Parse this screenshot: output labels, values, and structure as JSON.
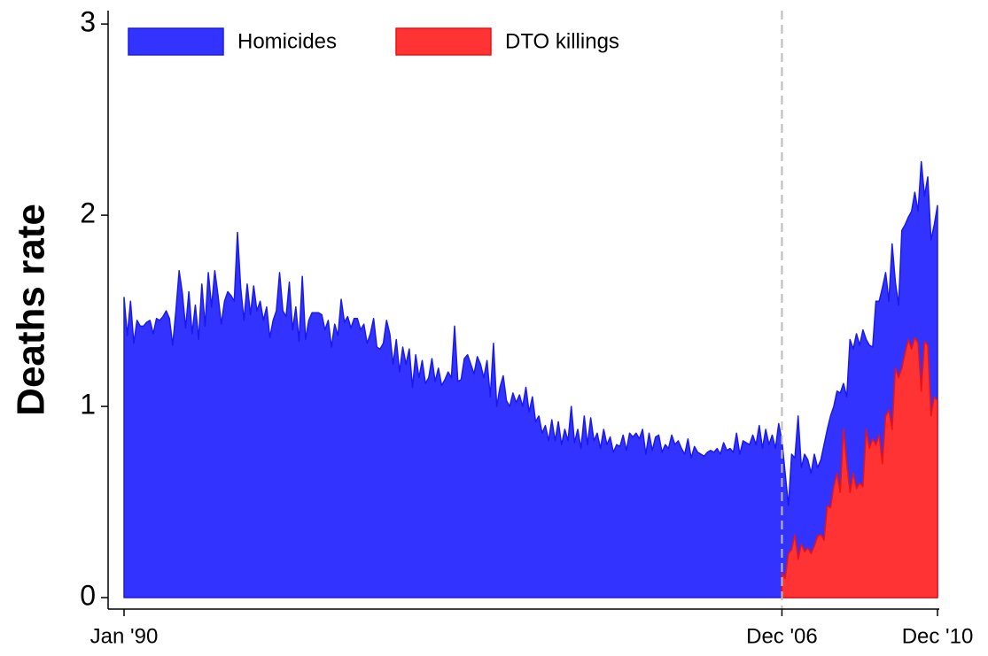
{
  "chart_data": {
    "type": "area",
    "y_label": "Deaths rate",
    "categories": [
      "Jan '90",
      null,
      null,
      null,
      null,
      null,
      null,
      null,
      null,
      null,
      null,
      null,
      null,
      null,
      null,
      null,
      null,
      null,
      null,
      null,
      null,
      null,
      null,
      null,
      null,
      null,
      null,
      null,
      null,
      null,
      null,
      null,
      null,
      null,
      null,
      null,
      null,
      null,
      null,
      null,
      null,
      null,
      null,
      null,
      null,
      null,
      null,
      null,
      null,
      null,
      null,
      null,
      null,
      null,
      null,
      null,
      null,
      null,
      null,
      null,
      null,
      null,
      null,
      null,
      null,
      null,
      null,
      null,
      null,
      null,
      null,
      null,
      null,
      null,
      null,
      null,
      null,
      null,
      null,
      null,
      null,
      null,
      null,
      null,
      null,
      null,
      null,
      null,
      null,
      null,
      null,
      null,
      null,
      null,
      null,
      null,
      null,
      null,
      null,
      null,
      null,
      null,
      null,
      null,
      null,
      null,
      null,
      null,
      null,
      null,
      null,
      null,
      null,
      null,
      null,
      null,
      null,
      null,
      null,
      null,
      null,
      null,
      null,
      null,
      null,
      null,
      null,
      null,
      null,
      null,
      null,
      null,
      null,
      null,
      null,
      null,
      null,
      null,
      null,
      null,
      null,
      null,
      null,
      null,
      null,
      null,
      null,
      null,
      null,
      null,
      null,
      null,
      null,
      null,
      null,
      null,
      null,
      null,
      null,
      null,
      null,
      null,
      null,
      null,
      null,
      null,
      null,
      null,
      null,
      null,
      null,
      null,
      null,
      null,
      null,
      null,
      null,
      null,
      null,
      null,
      null,
      null,
      null,
      null,
      null,
      null,
      null,
      null,
      null,
      null,
      null,
      null,
      null,
      null,
      null,
      null,
      null,
      null,
      null,
      null,
      null,
      null,
      null,
      "Dec '06",
      null,
      null,
      null,
      null,
      null,
      null,
      null,
      null,
      null,
      null,
      null,
      null,
      null,
      null,
      null,
      null,
      null,
      null,
      null,
      null,
      null,
      null,
      null,
      null,
      null,
      null,
      null,
      null,
      null,
      null,
      null,
      null,
      null,
      null,
      null,
      null,
      null,
      null,
      null,
      null,
      null,
      null,
      null,
      null,
      null,
      null,
      null,
      "Dec '10"
    ],
    "series": [
      {
        "name": "Homicides",
        "color": "#3333ff",
        "edge": "#1a1aee",
        "values": [
          1.57,
          1.37,
          1.55,
          1.33,
          1.45,
          1.42,
          1.42,
          1.44,
          1.45,
          1.38,
          1.46,
          1.45,
          1.47,
          1.5,
          1.46,
          1.32,
          1.5,
          1.71,
          1.59,
          1.41,
          1.6,
          1.38,
          1.53,
          1.35,
          1.64,
          1.42,
          1.7,
          1.52,
          1.71,
          1.58,
          1.43,
          1.55,
          1.6,
          1.58,
          1.55,
          1.91,
          1.62,
          1.45,
          1.64,
          1.48,
          1.63,
          1.5,
          1.55,
          1.45,
          1.52,
          1.36,
          1.45,
          1.5,
          1.7,
          1.5,
          1.47,
          1.65,
          1.4,
          1.52,
          1.34,
          1.68,
          1.35,
          1.45,
          1.49,
          1.49,
          1.49,
          1.48,
          1.4,
          1.45,
          1.31,
          1.43,
          1.37,
          1.56,
          1.44,
          1.47,
          1.41,
          1.46,
          1.46,
          1.4,
          1.43,
          1.33,
          1.38,
          1.46,
          1.31,
          1.3,
          1.33,
          1.45,
          1.38,
          1.22,
          1.35,
          1.18,
          1.31,
          1.22,
          1.3,
          1.1,
          1.27,
          1.15,
          1.24,
          1.12,
          1.15,
          1.25,
          1.13,
          1.2,
          1.11,
          1.14,
          1.18,
          1.15,
          1.42,
          1.13,
          1.14,
          1.25,
          1.27,
          1.22,
          1.17,
          1.26,
          1.22,
          1.15,
          1.24,
          1.05,
          1.33,
          1.0,
          1.1,
          1.16,
          1.03,
          1.0,
          1.07,
          1.02,
          1.06,
          1.0,
          1.1,
          0.97,
          1.05,
          0.92,
          0.95,
          0.86,
          0.9,
          0.82,
          0.93,
          0.82,
          0.92,
          0.8,
          0.88,
          0.82,
          1.0,
          0.81,
          0.88,
          0.78,
          0.95,
          0.8,
          0.94,
          0.82,
          0.86,
          0.78,
          0.88,
          0.8,
          0.84,
          0.76,
          0.8,
          0.79,
          0.85,
          0.77,
          0.86,
          0.84,
          0.86,
          0.83,
          0.88,
          0.75,
          0.86,
          0.77,
          0.84,
          0.85,
          0.76,
          0.8,
          0.78,
          0.85,
          0.8,
          0.82,
          0.78,
          0.75,
          0.83,
          0.73,
          0.79,
          0.76,
          0.75,
          0.74,
          0.76,
          0.77,
          0.76,
          0.78,
          0.75,
          0.81,
          0.77,
          0.78,
          0.76,
          0.86,
          0.75,
          0.82,
          0.81,
          0.8,
          0.85,
          0.8,
          0.9,
          0.78,
          0.88,
          0.8,
          0.85,
          0.78,
          0.91,
          0.82,
          0.65,
          0.48,
          0.75,
          0.73,
          0.95,
          0.68,
          0.75,
          0.72,
          0.65,
          0.75,
          0.68,
          0.72,
          0.8,
          0.88,
          0.95,
          1.0,
          1.08,
          1.07,
          1.12,
          1.05,
          1.35,
          1.3,
          1.38,
          1.32,
          1.4,
          1.35,
          1.32,
          1.31,
          1.55,
          1.55,
          1.62,
          1.7,
          1.55,
          1.85,
          1.65,
          1.53,
          1.92,
          1.95,
          1.99,
          2.02,
          2.12,
          2.02,
          2.28,
          2.1,
          2.2,
          1.87,
          1.95,
          2.05
        ]
      },
      {
        "name": "DTO killings",
        "color": "#ff3333",
        "edge": "#ee1111",
        "values": [
          null,
          null,
          null,
          null,
          null,
          null,
          null,
          null,
          null,
          null,
          null,
          null,
          null,
          null,
          null,
          null,
          null,
          null,
          null,
          null,
          null,
          null,
          null,
          null,
          null,
          null,
          null,
          null,
          null,
          null,
          null,
          null,
          null,
          null,
          null,
          null,
          null,
          null,
          null,
          null,
          null,
          null,
          null,
          null,
          null,
          null,
          null,
          null,
          null,
          null,
          null,
          null,
          null,
          null,
          null,
          null,
          null,
          null,
          null,
          null,
          null,
          null,
          null,
          null,
          null,
          null,
          null,
          null,
          null,
          null,
          null,
          null,
          null,
          null,
          null,
          null,
          null,
          null,
          null,
          null,
          null,
          null,
          null,
          null,
          null,
          null,
          null,
          null,
          null,
          null,
          null,
          null,
          null,
          null,
          null,
          null,
          null,
          null,
          null,
          null,
          null,
          null,
          null,
          null,
          null,
          null,
          null,
          null,
          null,
          null,
          null,
          null,
          null,
          null,
          null,
          null,
          null,
          null,
          null,
          null,
          null,
          null,
          null,
          null,
          null,
          null,
          null,
          null,
          null,
          null,
          null,
          null,
          null,
          null,
          null,
          null,
          null,
          null,
          null,
          null,
          null,
          null,
          null,
          null,
          null,
          null,
          null,
          null,
          null,
          null,
          null,
          null,
          null,
          null,
          null,
          null,
          null,
          null,
          null,
          null,
          null,
          null,
          null,
          null,
          null,
          null,
          null,
          null,
          null,
          null,
          null,
          null,
          null,
          null,
          null,
          null,
          null,
          null,
          null,
          null,
          null,
          null,
          null,
          null,
          null,
          null,
          null,
          null,
          null,
          null,
          null,
          null,
          null,
          null,
          null,
          null,
          null,
          null,
          null,
          null,
          null,
          null,
          null,
          0.13,
          0.1,
          0.23,
          0.25,
          0.33,
          0.2,
          0.28,
          0.24,
          0.26,
          0.23,
          0.27,
          0.32,
          0.33,
          0.3,
          0.48,
          0.47,
          0.58,
          0.65,
          0.55,
          0.88,
          0.7,
          0.55,
          0.65,
          0.57,
          0.6,
          0.58,
          0.88,
          0.78,
          0.83,
          0.8,
          0.85,
          0.7,
          0.95,
          0.98,
          0.88,
          1.2,
          1.15,
          1.2,
          1.28,
          1.35,
          1.3,
          1.36,
          1.33,
          1.08,
          1.34,
          1.32,
          0.95,
          1.05,
          1.03
        ]
      }
    ],
    "ylim": [
      -0.06,
      3.07
    ],
    "yticks": [
      0,
      1,
      2,
      3
    ],
    "vline": {
      "category": "Dec '06",
      "color": "#bbbbbb"
    },
    "legend": "top-left"
  }
}
